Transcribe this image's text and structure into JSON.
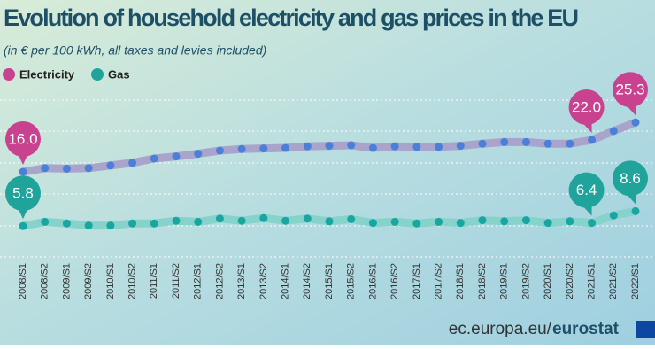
{
  "chart_data": {
    "type": "line",
    "title": "Evolution of household electricity and gas prices in the EU",
    "subtitle": "(in € per 100 kWh, all taxes and levies included)",
    "categories": [
      "2008/S1",
      "2008/S2",
      "2009/S1",
      "2009/S2",
      "2010/S1",
      "2010/S2",
      "2011/S1",
      "2011/S2",
      "2012/S1",
      "2012/S2",
      "2013/S1",
      "2013/S2",
      "2014/S1",
      "2014/S2",
      "2015/S1",
      "2015/S2",
      "2016/S1",
      "2016/S2",
      "2017/S1",
      "2017/S2",
      "2018/S1",
      "2018/S2",
      "2019/S1",
      "2019/S2",
      "2020/S1",
      "2020/S2",
      "2021/S1",
      "2021/S2",
      "2022/S1"
    ],
    "series": [
      {
        "name": "Electricity",
        "color": "#c9428f",
        "line_color": "#a9a4cc",
        "dot_color": "#4a80d8",
        "values": [
          16.0,
          16.7,
          16.6,
          16.7,
          17.2,
          17.7,
          18.5,
          18.9,
          19.4,
          20.0,
          20.3,
          20.4,
          20.5,
          20.8,
          20.9,
          21.0,
          20.5,
          20.8,
          20.7,
          20.7,
          20.9,
          21.3,
          21.6,
          21.6,
          21.3,
          21.3,
          22.0,
          23.7,
          25.3
        ],
        "value_labels": [
          "16.0",
          null,
          null,
          null,
          null,
          null,
          null,
          null,
          null,
          null,
          null,
          null,
          null,
          null,
          null,
          null,
          null,
          null,
          null,
          null,
          null,
          null,
          null,
          null,
          null,
          null,
          "22.0",
          null,
          "25.3"
        ]
      },
      {
        "name": "Gas",
        "color": "#1fa39b",
        "line_color": "#86d3cb",
        "dot_color": "#1aa6a0",
        "values": [
          5.8,
          6.6,
          6.3,
          5.9,
          5.9,
          6.3,
          6.3,
          6.8,
          6.6,
          7.2,
          6.8,
          7.3,
          6.8,
          7.2,
          6.7,
          7.1,
          6.4,
          6.6,
          6.3,
          6.6,
          6.4,
          6.9,
          6.7,
          6.9,
          6.4,
          6.7,
          6.4,
          7.8,
          8.6
        ],
        "value_labels": [
          "5.8",
          null,
          null,
          null,
          null,
          null,
          null,
          null,
          null,
          null,
          null,
          null,
          null,
          null,
          null,
          null,
          null,
          null,
          null,
          null,
          null,
          null,
          null,
          null,
          null,
          null,
          "6.4",
          null,
          "8.6"
        ]
      }
    ],
    "ylim": [
      0,
      30
    ],
    "footer": {
      "site": "ec.europa.eu/",
      "brand": "eurostat"
    }
  }
}
